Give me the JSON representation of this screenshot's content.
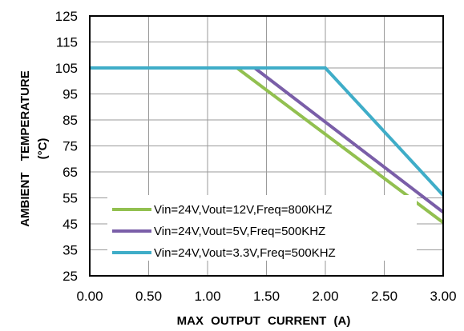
{
  "chart_data": {
    "type": "line",
    "xlabel": "MAX OUTPUT CURRENT (A)",
    "ylabel_lines": [
      "AMBIENT TEMPERATURE",
      "(°C)"
    ],
    "xlim": [
      0,
      3
    ],
    "ylim": [
      25,
      125
    ],
    "x_ticks": [
      "0.00",
      "0.50",
      "1.00",
      "1.50",
      "2.00",
      "2.50",
      "3.00"
    ],
    "y_ticks": [
      "25",
      "35",
      "45",
      "55",
      "65",
      "75",
      "85",
      "95",
      "105",
      "115",
      "125"
    ],
    "grid": true,
    "legend_position": "bottom-center",
    "series": [
      {
        "name": "Vin=24V,Vout=12V,Freq=800KHZ",
        "color": "#92c050",
        "points": [
          [
            0,
            105
          ],
          [
            1.25,
            105
          ],
          [
            3.0,
            45.5
          ]
        ]
      },
      {
        "name": "Vin=24V,Vout=5V,Freq=500KHZ",
        "color": "#7a5ea8",
        "points": [
          [
            0,
            105
          ],
          [
            1.4,
            105
          ],
          [
            3.0,
            49.5
          ]
        ]
      },
      {
        "name": "Vin=24V,Vout=3.3V,Freq=500KHZ",
        "color": "#3fadc8",
        "points": [
          [
            0,
            105
          ],
          [
            2.0,
            105
          ],
          [
            3.0,
            56
          ]
        ]
      }
    ]
  }
}
